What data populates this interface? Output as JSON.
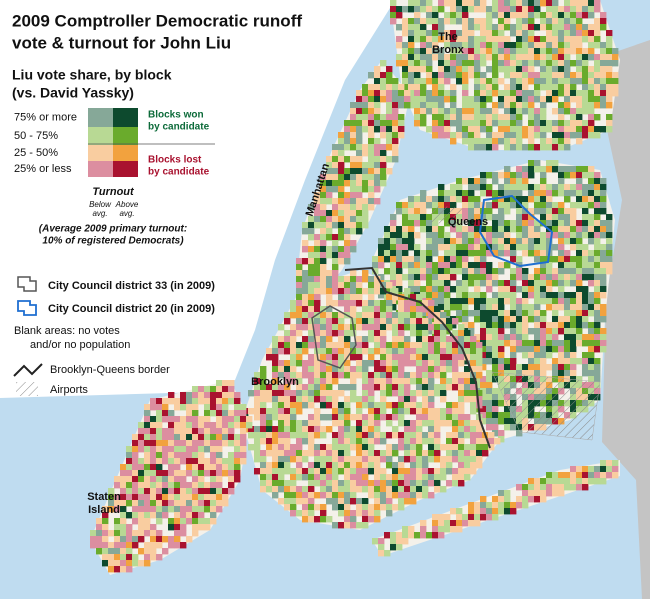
{
  "title": [
    "2009 Comptroller Democratic runoff",
    "vote & turnout for John Liu"
  ],
  "legend": {
    "title": [
      "Liu vote share, by block",
      "(vs. David Yassky)"
    ],
    "rows": [
      {
        "label": "75% or more",
        "colors": [
          "#86a898",
          "#0d4a2e"
        ]
      },
      {
        "label": "50 - 75%",
        "colors": [
          "#b8d994",
          "#6aab2c"
        ]
      },
      {
        "label": "25 - 50%",
        "colors": [
          "#f9cda0",
          "#f2a23e"
        ]
      },
      {
        "label": "25% or less",
        "colors": [
          "#dc8ea0",
          "#a9122f"
        ]
      }
    ],
    "won": [
      "Blocks won",
      "by candidate"
    ],
    "lost": [
      "Blocks lost",
      "by candidate"
    ],
    "turnout": {
      "title": "Turnout",
      "below": [
        "Below",
        "avg."
      ],
      "above": [
        "Above",
        "avg."
      ],
      "note": [
        "(Average 2009 primary turnout:",
        "10% of registered Democrats)"
      ]
    },
    "district33": "City Council district 33 (in 2009)",
    "district20": "City Council district 20 (in 2009)",
    "blank": [
      "Blank areas: no votes",
      "and/or no population"
    ],
    "border": "Brooklyn-Queens border",
    "airports": "Airports"
  },
  "places": {
    "bronx": [
      "The",
      "Bronx"
    ],
    "manhattan": "Manhattan",
    "queens": "Queens",
    "brooklyn": "Brooklyn",
    "staten": [
      "Staten",
      "Island"
    ]
  }
}
